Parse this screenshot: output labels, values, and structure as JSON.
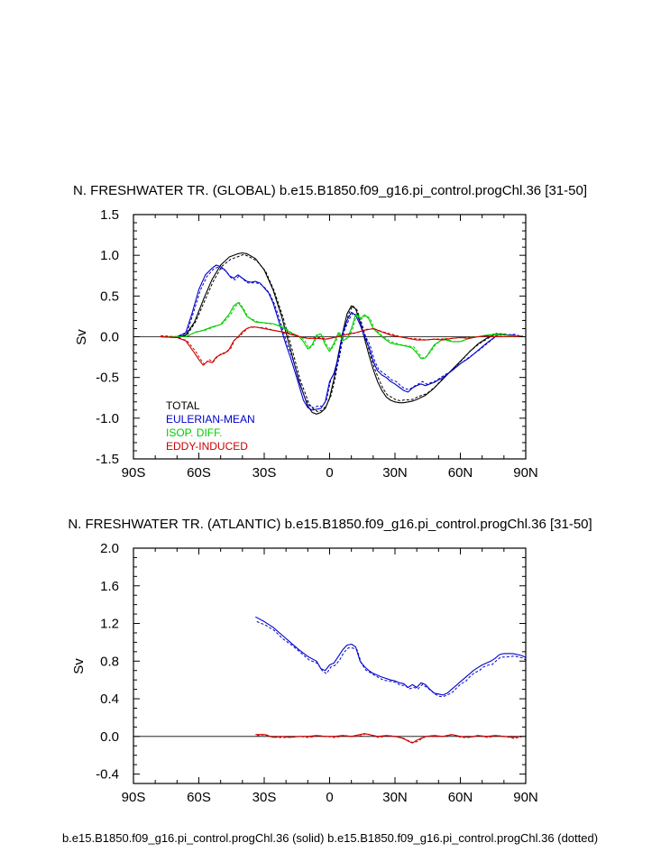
{
  "footer": "b.e15.B1850.f09_g16.pi_control.progChl.36 (solid) b.e15.B1850.f09_g16.pi_control.progChl.36 (dotted)",
  "colors": {
    "total": "#000000",
    "eulerian": "#0000cc",
    "isop": "#00cc00",
    "eddy": "#cc0000"
  },
  "chart_data": [
    {
      "type": "line",
      "title": "N. FRESHWATER TR. (GLOBAL) b.e15.B1850.f09_g16.pi_control.progChl.36 [31-50]",
      "xlabel": "",
      "ylabel": "Sv",
      "xlim": [
        -90,
        90
      ],
      "ylim": [
        -1.5,
        1.5
      ],
      "xticks": [
        -90,
        -60,
        -30,
        0,
        30,
        60,
        90
      ],
      "xtick_labels": [
        "90S",
        "60S",
        "30S",
        "0",
        "30N",
        "60N",
        "90N"
      ],
      "yticks": [
        -1.5,
        -1.0,
        -0.5,
        0.0,
        0.5,
        1.0,
        1.5
      ],
      "ytick_labels": [
        "-1.5",
        "-1.0",
        "-0.5",
        "0.0",
        "0.5",
        "1.0",
        "1.5"
      ],
      "legend_position": "lower-left",
      "legend": [
        "TOTAL",
        "EULERIAN-MEAN",
        "ISOP. DIFF.",
        "EDDY-INDUCED"
      ],
      "series": [
        {
          "name": "TOTAL",
          "color": "#000000",
          "x": [
            -78,
            -70,
            -66,
            -62,
            -58,
            -54,
            -50,
            -46,
            -42,
            -40,
            -38,
            -34,
            -30,
            -26,
            -22,
            -18,
            -14,
            -10,
            -8,
            -6,
            -4,
            -2,
            0,
            2,
            4,
            6,
            8,
            10,
            12,
            14,
            16,
            18,
            20,
            22,
            24,
            26,
            28,
            30,
            32,
            34,
            36,
            38,
            40,
            44,
            48,
            52,
            56,
            60,
            64,
            68,
            72,
            76,
            80,
            84,
            88
          ],
          "y": [
            0.0,
            -0.01,
            0.02,
            0.18,
            0.45,
            0.7,
            0.88,
            0.98,
            1.02,
            1.03,
            1.02,
            0.96,
            0.82,
            0.58,
            0.25,
            -0.15,
            -0.55,
            -0.85,
            -0.93,
            -0.95,
            -0.93,
            -0.88,
            -0.75,
            -0.52,
            -0.22,
            0.05,
            0.28,
            0.38,
            0.34,
            0.18,
            -0.02,
            -0.22,
            -0.4,
            -0.55,
            -0.66,
            -0.74,
            -0.78,
            -0.8,
            -0.81,
            -0.81,
            -0.8,
            -0.79,
            -0.77,
            -0.72,
            -0.63,
            -0.52,
            -0.41,
            -0.3,
            -0.19,
            -0.09,
            -0.02,
            0.03,
            0.03,
            0.01,
            0.0
          ]
        },
        {
          "name": "EULERIAN-MEAN",
          "color": "#0000cc",
          "x": [
            -78,
            -70,
            -66,
            -63,
            -60,
            -57,
            -54,
            -52,
            -50,
            -48,
            -46,
            -44,
            -42,
            -40,
            -38,
            -36,
            -34,
            -32,
            -30,
            -28,
            -26,
            -24,
            -22,
            -20,
            -18,
            -16,
            -14,
            -12,
            -10,
            -8,
            -6,
            -4,
            -2,
            0,
            2,
            4,
            6,
            8,
            10,
            12,
            14,
            16,
            18,
            20,
            22,
            24,
            26,
            28,
            30,
            32,
            34,
            36,
            38,
            40,
            42,
            44,
            48,
            52,
            56,
            60,
            64,
            68,
            72,
            76,
            78,
            80,
            84,
            88
          ],
          "y": [
            0.0,
            0.0,
            0.05,
            0.3,
            0.58,
            0.76,
            0.84,
            0.88,
            0.86,
            0.82,
            0.75,
            0.72,
            0.76,
            0.72,
            0.68,
            0.67,
            0.68,
            0.66,
            0.6,
            0.54,
            0.42,
            0.25,
            0.08,
            -0.1,
            -0.25,
            -0.42,
            -0.6,
            -0.78,
            -0.87,
            -0.9,
            -0.89,
            -0.88,
            -0.8,
            -0.55,
            -0.45,
            -0.25,
            0.05,
            0.2,
            0.3,
            0.26,
            0.15,
            0.0,
            -0.12,
            -0.3,
            -0.42,
            -0.47,
            -0.5,
            -0.55,
            -0.58,
            -0.62,
            -0.66,
            -0.68,
            -0.63,
            -0.6,
            -0.58,
            -0.6,
            -0.56,
            -0.5,
            -0.42,
            -0.33,
            -0.26,
            -0.17,
            -0.08,
            0.0,
            0.03,
            0.02,
            0.02,
            0.0
          ]
        },
        {
          "name": "ISOP. DIFF.",
          "color": "#00cc00",
          "x": [
            -78,
            -70,
            -66,
            -62,
            -58,
            -54,
            -50,
            -46,
            -44,
            -42,
            -40,
            -38,
            -34,
            -30,
            -26,
            -22,
            -18,
            -14,
            -12,
            -10,
            -8,
            -6,
            -4,
            -2,
            0,
            2,
            4,
            6,
            8,
            10,
            12,
            14,
            16,
            18,
            20,
            24,
            28,
            32,
            36,
            38,
            40,
            42,
            44,
            46,
            48,
            52,
            56,
            60,
            64,
            68,
            72,
            76,
            80,
            84,
            88
          ],
          "y": [
            0.0,
            0.0,
            0.0,
            0.05,
            0.08,
            0.12,
            0.15,
            0.28,
            0.38,
            0.42,
            0.35,
            0.25,
            0.18,
            0.17,
            0.16,
            0.12,
            0.05,
            0.0,
            -0.06,
            -0.15,
            -0.1,
            0.02,
            0.03,
            -0.1,
            -0.18,
            -0.08,
            0.05,
            -0.05,
            -0.02,
            0.1,
            0.28,
            0.22,
            0.27,
            0.22,
            0.1,
            0.0,
            -0.08,
            -0.1,
            -0.12,
            -0.14,
            -0.2,
            -0.27,
            -0.26,
            -0.18,
            -0.1,
            -0.03,
            -0.06,
            -0.06,
            -0.02,
            0.0,
            0.02,
            0.03,
            0.02,
            0.01,
            0.0
          ]
        },
        {
          "name": "EDDY-INDUCED",
          "color": "#cc0000",
          "x": [
            -78,
            -70,
            -66,
            -62,
            -60,
            -58,
            -56,
            -54,
            -52,
            -50,
            -48,
            -46,
            -44,
            -42,
            -40,
            -38,
            -36,
            -34,
            -30,
            -26,
            -22,
            -18,
            -14,
            -10,
            -6,
            -2,
            0,
            4,
            8,
            12,
            16,
            20,
            24,
            28,
            32,
            36,
            40,
            44,
            48,
            52,
            56,
            60,
            64,
            68,
            72,
            76,
            80,
            84,
            88
          ],
          "y": [
            0.0,
            -0.01,
            -0.05,
            -0.2,
            -0.28,
            -0.35,
            -0.3,
            -0.32,
            -0.25,
            -0.22,
            -0.2,
            -0.15,
            -0.05,
            0.0,
            0.06,
            0.1,
            0.12,
            0.12,
            0.1,
            0.08,
            0.06,
            0.03,
            0.0,
            -0.02,
            -0.02,
            -0.03,
            -0.02,
            0.0,
            0.03,
            0.05,
            0.08,
            0.1,
            0.06,
            0.02,
            0.0,
            -0.02,
            -0.04,
            -0.04,
            -0.03,
            -0.04,
            -0.02,
            -0.01,
            -0.02,
            0.0,
            0.01,
            0.0,
            0.0,
            0.0,
            0.0
          ]
        }
      ]
    },
    {
      "type": "line",
      "title": "N. FRESHWATER TR. (ATLANTIC) b.e15.B1850.f09_g16.pi_control.progChl.36 [31-50]",
      "xlabel": "",
      "ylabel": "Sv",
      "xlim": [
        -90,
        90
      ],
      "ylim": [
        -0.5,
        2.0
      ],
      "xticks": [
        -90,
        -60,
        -30,
        0,
        30,
        60,
        90
      ],
      "xtick_labels": [
        "90S",
        "60S",
        "30S",
        "0",
        "30N",
        "60N",
        "90N"
      ],
      "yticks": [
        -0.4,
        0.0,
        0.4,
        0.8,
        1.2,
        1.6,
        2.0
      ],
      "ytick_labels": [
        "-0.4",
        "0.0",
        "0.4",
        "0.8",
        "1.2",
        "1.6",
        "2.0"
      ],
      "series": [
        {
          "name": "EULERIAN-MEAN",
          "color": "#0000cc",
          "x": [
            -34,
            -30,
            -26,
            -22,
            -18,
            -14,
            -10,
            -6,
            -4,
            -2,
            0,
            2,
            4,
            6,
            8,
            10,
            12,
            14,
            16,
            18,
            20,
            24,
            28,
            30,
            32,
            34,
            36,
            38,
            40,
            42,
            44,
            46,
            48,
            50,
            52,
            54,
            56,
            58,
            60,
            62,
            64,
            66,
            68,
            70,
            72,
            74,
            76,
            78,
            80,
            84,
            88,
            90
          ],
          "y": [
            1.27,
            1.22,
            1.16,
            1.08,
            1.0,
            0.92,
            0.85,
            0.8,
            0.72,
            0.7,
            0.76,
            0.78,
            0.85,
            0.92,
            0.97,
            0.98,
            0.95,
            0.8,
            0.74,
            0.7,
            0.67,
            0.63,
            0.6,
            0.59,
            0.57,
            0.56,
            0.52,
            0.55,
            0.52,
            0.57,
            0.55,
            0.5,
            0.46,
            0.45,
            0.44,
            0.46,
            0.5,
            0.54,
            0.58,
            0.62,
            0.66,
            0.7,
            0.73,
            0.76,
            0.78,
            0.8,
            0.83,
            0.87,
            0.88,
            0.88,
            0.86,
            0.84
          ]
        },
        {
          "name": "EDDY-INDUCED",
          "color": "#cc0000",
          "x": [
            -34,
            -30,
            -26,
            -22,
            -18,
            -14,
            -10,
            -6,
            -2,
            2,
            6,
            10,
            14,
            16,
            18,
            22,
            26,
            30,
            34,
            36,
            38,
            40,
            42,
            44,
            48,
            52,
            56,
            60,
            64,
            68,
            72,
            76,
            80,
            84,
            88
          ],
          "y": [
            0.02,
            0.02,
            -0.01,
            0.0,
            -0.01,
            0.0,
            0.0,
            0.01,
            0.0,
            0.0,
            0.01,
            0.0,
            0.02,
            0.03,
            0.02,
            0.0,
            0.01,
            0.0,
            -0.02,
            -0.05,
            -0.07,
            -0.04,
            -0.02,
            0.0,
            0.01,
            0.0,
            0.02,
            0.0,
            -0.01,
            0.01,
            0.0,
            0.01,
            0.0,
            -0.01,
            0.0
          ]
        }
      ]
    }
  ]
}
